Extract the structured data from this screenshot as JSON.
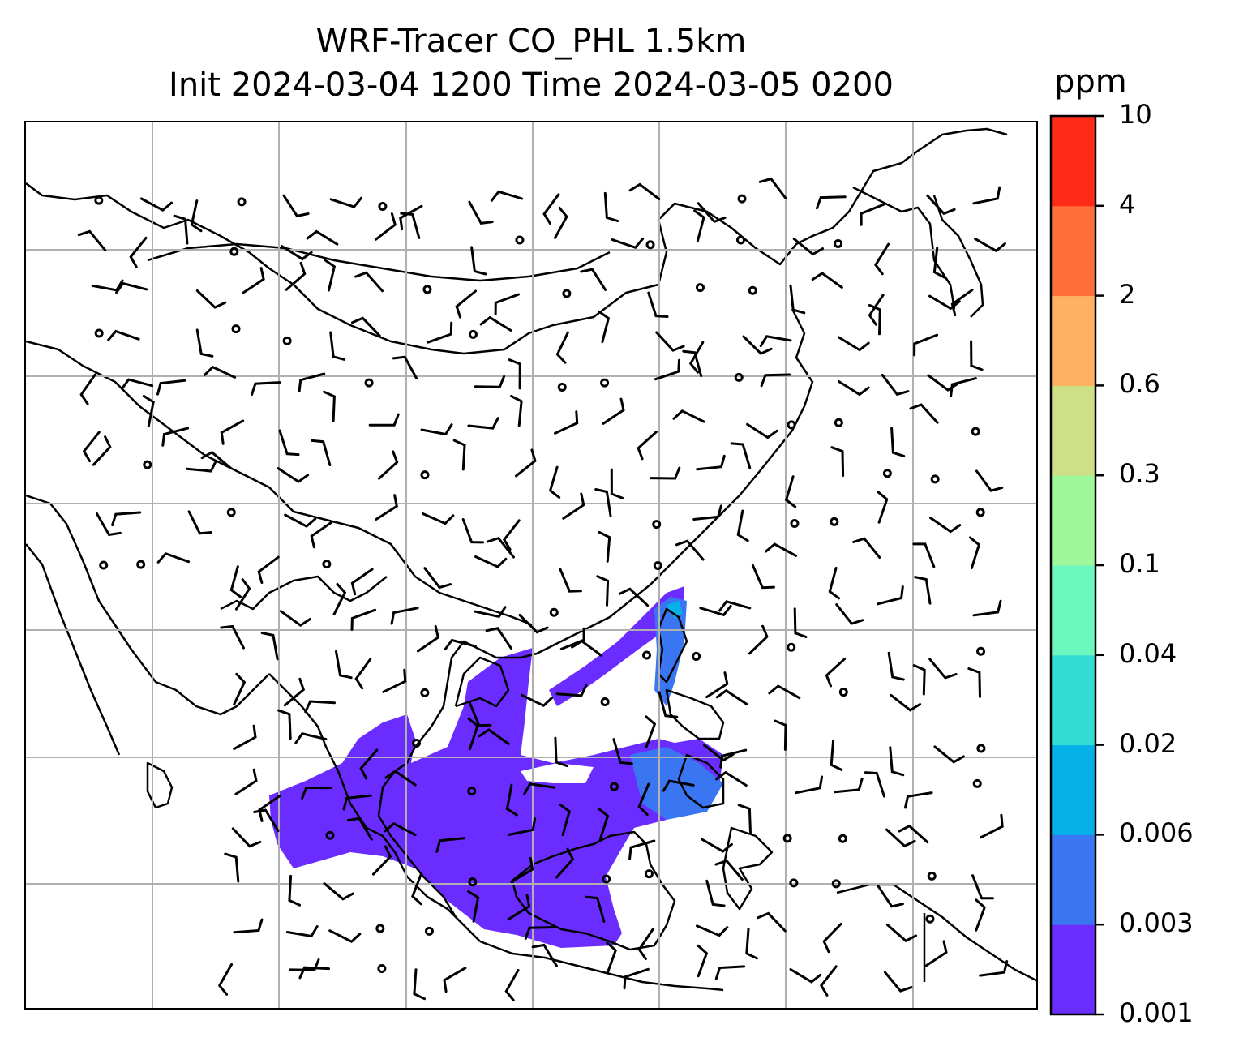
{
  "title": {
    "line1": "WRF-Tracer CO_PHL 1.5km",
    "line2": "Init 2024-03-04 1200 Time 2024-03-05 0200"
  },
  "colorbar": {
    "unit": "ppm",
    "ticks": [
      "0.001",
      "0.003",
      "0.006",
      "0.02",
      "0.04",
      "0.1",
      "0.3",
      "0.6",
      "2",
      "4",
      "10"
    ],
    "colors": [
      "#6a2cff",
      "#3a75f2",
      "#06b1ea",
      "#33dcd4",
      "#6cf7be",
      "#9ef79b",
      "#cde086",
      "#ffb163",
      "#ff6f3c",
      "#ff2a17"
    ]
  },
  "map": {
    "gridlines": true,
    "gridline_color": "#b0b0b0",
    "coastline_color": "#000000",
    "plume_main_color": "#6a2cff",
    "plume_secondary_color": "#3a75f2",
    "plume_tertiary_color": "#06b1ea",
    "wind_barbs": true
  }
}
